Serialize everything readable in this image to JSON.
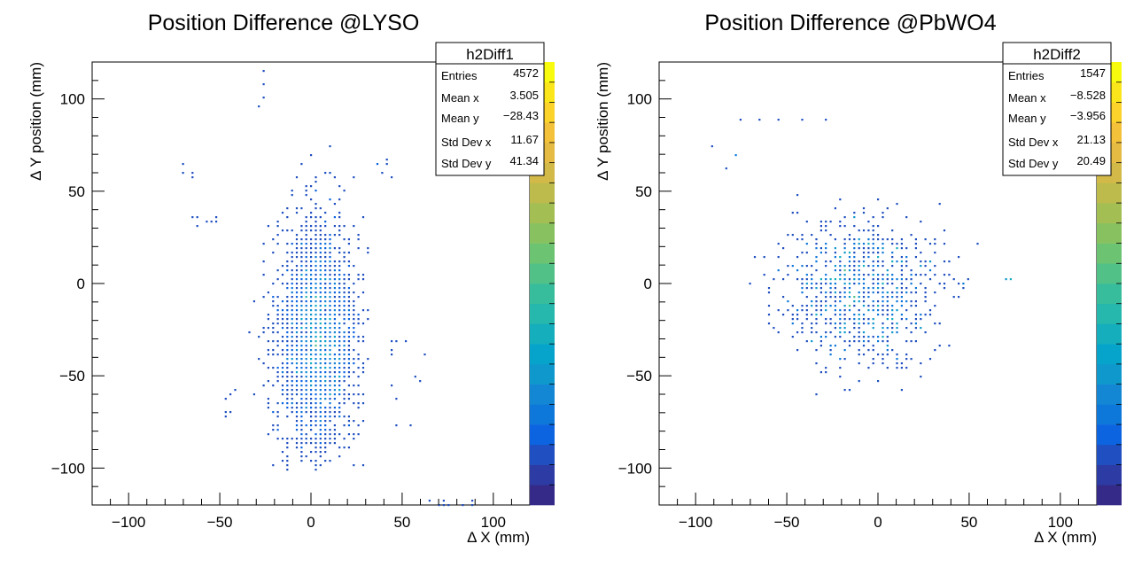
{
  "chart_data": [
    {
      "type": "heatmap",
      "title": "Position Difference @LYSO",
      "xlabel": "Δ X (mm)",
      "ylabel": "Δ Y position (mm)",
      "xlim": [
        -120,
        120
      ],
      "ylim": [
        -120,
        120
      ],
      "x_ticks": [
        -100,
        -50,
        0,
        50,
        100
      ],
      "y_ticks": [
        -100,
        -50,
        0,
        50,
        100
      ],
      "tick_labels": {
        "x": [
          "−100",
          "−50",
          "0",
          "50",
          "100"
        ],
        "y": [
          "−100",
          "−50",
          "0",
          "50",
          "100"
        ]
      },
      "colorbar": "vertical palette at right edge",
      "stats_box": {
        "name": "h2Diff1",
        "rows": [
          {
            "label": "Entries",
            "value": "4572"
          },
          {
            "label": "Mean x",
            "value": "3.505"
          },
          {
            "label": "Mean y",
            "value": "−28.43"
          },
          {
            "label": "Std Dev x",
            "value": "11.67"
          },
          {
            "label": "Std Dev y",
            "value": "41.34"
          }
        ]
      },
      "distribution": {
        "core": {
          "mean_x": 3.5,
          "mean_y": -28.4,
          "std_x": 11.7,
          "std_y": 41.3,
          "x_range": [
            -38,
            32
          ],
          "y_range": [
            -102,
            90
          ]
        },
        "outlier_clusters": [
          {
            "x": [
              -28,
              -26
            ],
            "y": [
              94,
              118
            ]
          },
          {
            "x": [
              -70,
              -65
            ],
            "y": [
              57,
              66
            ]
          },
          {
            "x": [
              -66,
              -47
            ],
            "y": [
              30,
              37
            ]
          },
          {
            "x": [
              -52,
              -40
            ],
            "y": [
              -76,
              -56
            ]
          },
          {
            "x": [
              52,
              70
            ],
            "y": [
              -80,
              -30
            ]
          },
          {
            "x": [
              40,
              50
            ],
            "y": [
              -80,
              -30
            ]
          },
          {
            "x": [
              60,
              90
            ],
            "y": [
              -120,
              -117
            ]
          },
          {
            "x": [
              36,
              45
            ],
            "y": [
              58,
              68
            ]
          }
        ]
      }
    },
    {
      "type": "heatmap",
      "title": "Position Difference @PbWO4",
      "xlabel": "Δ X (mm)",
      "ylabel": "Δ Y position (mm)",
      "xlim": [
        -120,
        120
      ],
      "ylim": [
        -120,
        120
      ],
      "x_ticks": [
        -100,
        -50,
        0,
        50,
        100
      ],
      "y_ticks": [
        -100,
        -50,
        0,
        50,
        100
      ],
      "tick_labels": {
        "x": [
          "−100",
          "−50",
          "0",
          "50",
          "100"
        ],
        "y": [
          "−100",
          "−50",
          "0",
          "50",
          "100"
        ]
      },
      "colorbar": "vertical palette at right edge",
      "stats_box": {
        "name": "h2Diff2",
        "rows": [
          {
            "label": "Entries",
            "value": "1547"
          },
          {
            "label": "Mean x",
            "value": "−8.528"
          },
          {
            "label": "Mean y",
            "value": "−3.956"
          },
          {
            "label": "Std Dev x",
            "value": "21.13"
          },
          {
            "label": "Std Dev y",
            "value": "20.49"
          }
        ]
      },
      "distribution": {
        "core": {
          "mean_x": -8.5,
          "mean_y": -4.0,
          "std_x": 21.1,
          "std_y": 20.5,
          "x_range": [
            -82,
            58
          ],
          "y_range": [
            -88,
            62
          ]
        },
        "outlier_clusters": [
          {
            "x": [
              -78,
              2
            ],
            "y": [
              88,
              89
            ]
          },
          {
            "x": [
              -92,
              -77
            ],
            "y": [
              62,
              78
            ]
          },
          {
            "x": [
              70,
              72
            ],
            "y": [
              2,
              3
            ]
          }
        ]
      }
    }
  ],
  "palette": [
    "#352a87",
    "#2d3ba4",
    "#1f4fc0",
    "#0d64e1",
    "#0d77da",
    "#1487d4",
    "#0e98cc",
    "#06a4ca",
    "#15aebd",
    "#26b7ad",
    "#38bd9c",
    "#52c187",
    "#6cc372",
    "#88c260",
    "#a3be53",
    "#bcbb4c",
    "#d2b948",
    "#e5bb44",
    "#f4c23a",
    "#fbd32b",
    "#fbe61c",
    "#f9fb0e"
  ]
}
